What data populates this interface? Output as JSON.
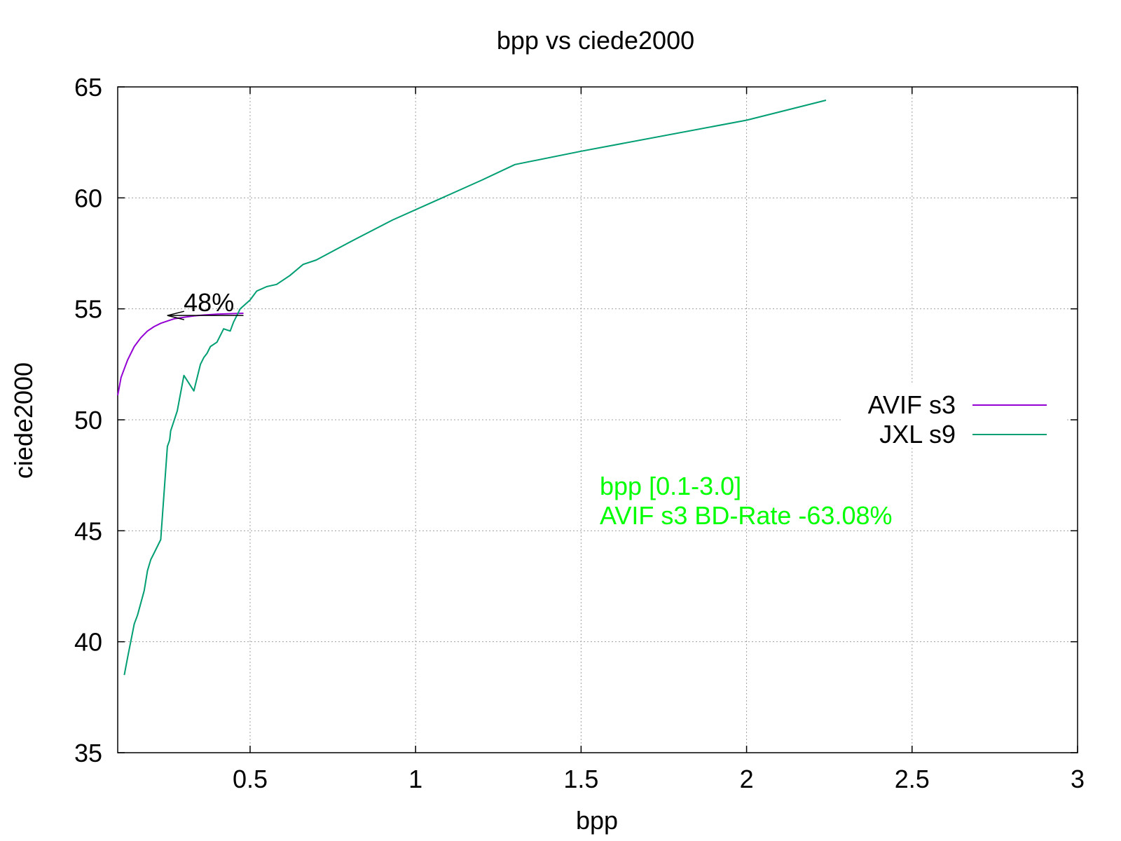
{
  "chart_data": {
    "type": "line",
    "title": "bpp vs ciede2000",
    "xlabel": "bpp",
    "ylabel": "ciede2000",
    "xlim": [
      0.1,
      3.0
    ],
    "ylim": [
      35,
      65
    ],
    "xticks": [
      0.5,
      1,
      1.5,
      2,
      2.5,
      3
    ],
    "xtick_labels": [
      "0.5",
      "1",
      "1.5",
      "2",
      "2.5",
      "3"
    ],
    "yticks": [
      35,
      40,
      45,
      50,
      55,
      60,
      65
    ],
    "ytick_labels": [
      "35",
      "40",
      "45",
      "50",
      "55",
      "60",
      "65"
    ],
    "grid": true,
    "legend_position": "right",
    "series": [
      {
        "name": "AVIF s3",
        "color": "#9400d3",
        "x": [
          0.1,
          0.105,
          0.11,
          0.12,
          0.13,
          0.14,
          0.15,
          0.17,
          0.19,
          0.21,
          0.23,
          0.25,
          0.27,
          0.3,
          0.33,
          0.36,
          0.4,
          0.44,
          0.48
        ],
        "y": [
          51.1,
          51.5,
          51.9,
          52.3,
          52.7,
          53.0,
          53.3,
          53.7,
          54.0,
          54.2,
          54.35,
          54.45,
          54.55,
          54.62,
          54.68,
          54.72,
          54.76,
          54.78,
          54.8
        ]
      },
      {
        "name": "JXL s9",
        "color": "#009e73",
        "x": [
          0.12,
          0.13,
          0.15,
          0.16,
          0.18,
          0.19,
          0.2,
          0.21,
          0.23,
          0.25,
          0.255,
          0.257,
          0.26,
          0.28,
          0.3,
          0.33,
          0.35,
          0.36,
          0.37,
          0.38,
          0.4,
          0.42,
          0.43,
          0.44,
          0.45,
          0.46,
          0.47,
          0.5,
          0.52,
          0.55,
          0.58,
          0.62,
          0.66,
          0.7,
          0.8,
          0.93,
          1.05,
          1.2,
          1.3,
          1.5,
          2.0,
          2.24
        ],
        "y": [
          38.5,
          39.3,
          40.8,
          41.2,
          42.3,
          43.2,
          43.7,
          44.0,
          44.6,
          48.8,
          49.0,
          49.1,
          49.5,
          50.4,
          52.0,
          51.3,
          52.5,
          52.8,
          53.0,
          53.3,
          53.5,
          54.1,
          54.05,
          54.0,
          54.4,
          54.7,
          55.0,
          55.4,
          55.8,
          56.0,
          56.1,
          56.5,
          57.0,
          57.2,
          58.0,
          59.0,
          59.8,
          60.8,
          61.5,
          62.1,
          63.5,
          64.4
        ]
      }
    ],
    "annotations": {
      "arrow_label": "48%",
      "arrow_from": [
        0.48,
        54.7
      ],
      "arrow_to": [
        0.25,
        54.7
      ],
      "info_color": "#00ff00",
      "info_line1": "bpp [0.1-3.0]",
      "info_line2": "AVIF s3 BD-Rate -63.08%"
    }
  }
}
